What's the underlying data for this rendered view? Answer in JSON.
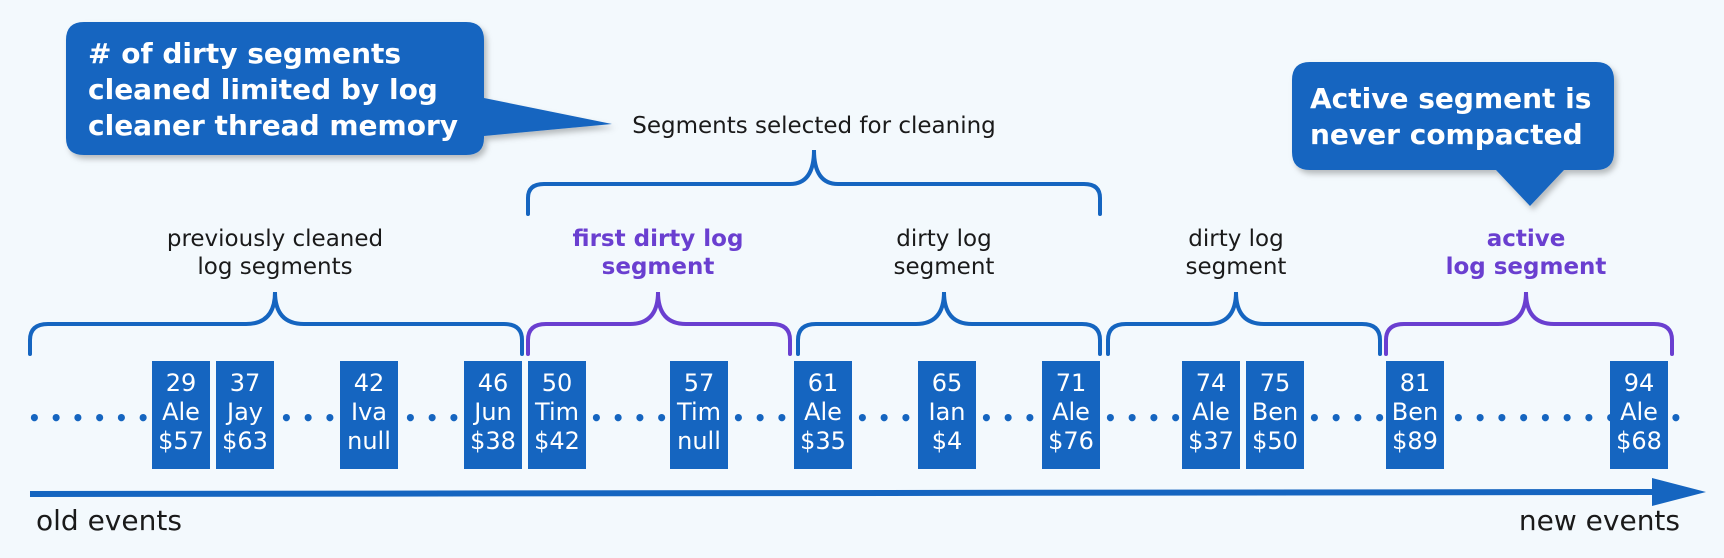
{
  "callouts": {
    "memory": [
      "# of dirty segments",
      "cleaned limited by log",
      "cleaner thread memory"
    ],
    "active": [
      "Active segment is",
      "never compacted"
    ]
  },
  "selected_label": "Segments selected for cleaning",
  "segments": [
    {
      "lines": [
        "previously cleaned",
        "log segments"
      ],
      "style": "normal"
    },
    {
      "lines": [
        "first dirty log",
        "segment"
      ],
      "style": "purple"
    },
    {
      "lines": [
        "dirty log",
        "segment"
      ],
      "style": "normal"
    },
    {
      "lines": [
        "dirty log",
        "segment"
      ],
      "style": "normal"
    },
    {
      "lines": [
        "active",
        "log segment"
      ],
      "style": "purple"
    }
  ],
  "records": [
    {
      "offset": "29",
      "key": "Ale",
      "value": "$57"
    },
    {
      "offset": "37",
      "key": "Jay",
      "value": "$63"
    },
    {
      "offset": "42",
      "key": "Iva",
      "value": "null"
    },
    {
      "offset": "46",
      "key": "Jun",
      "value": "$38"
    },
    {
      "offset": "50",
      "key": "Tim",
      "value": "$42"
    },
    {
      "offset": "57",
      "key": "Tim",
      "value": "null"
    },
    {
      "offset": "61",
      "key": "Ale",
      "value": "$35"
    },
    {
      "offset": "65",
      "key": "Ian",
      "value": "$4"
    },
    {
      "offset": "71",
      "key": "Ale",
      "value": "$76"
    },
    {
      "offset": "74",
      "key": "Ale",
      "value": "$37"
    },
    {
      "offset": "75",
      "key": "Ben",
      "value": "$50"
    },
    {
      "offset": "81",
      "key": "Ben",
      "value": "$89"
    },
    {
      "offset": "94",
      "key": "Ale",
      "value": "$68"
    }
  ],
  "axis": {
    "old": "old events",
    "new": "new events"
  },
  "colors": {
    "blue": "#1565c0",
    "purple": "#6a3fd0",
    "record": "#1565c0"
  }
}
